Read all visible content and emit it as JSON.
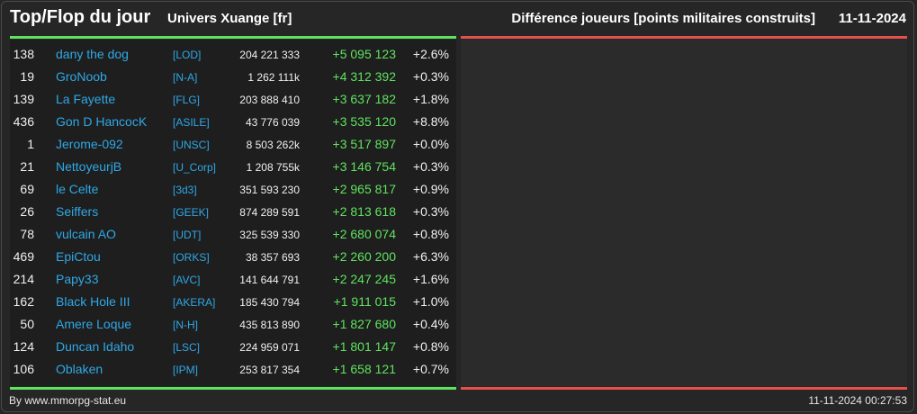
{
  "header": {
    "title": "Top/Flop du jour",
    "universe": "Univers Xuange [fr]",
    "metric": "Différence joueurs [points militaires construits]",
    "date": "11-11-2024"
  },
  "colors": {
    "green": "#5fe35f",
    "red": "#e3514a",
    "link": "#2fa8e6"
  },
  "top_players": [
    {
      "rank": "138",
      "name": "dany the dog",
      "tag": "[LOD]",
      "total": "204 221 333",
      "delta": "+5 095 123",
      "pct": "+2.6%"
    },
    {
      "rank": "19",
      "name": "GroNoob",
      "tag": "[N-A]",
      "total": "1 262 111k",
      "delta": "+4 312 392",
      "pct": "+0.3%"
    },
    {
      "rank": "139",
      "name": "La Fayette",
      "tag": "[FLG]",
      "total": "203 888 410",
      "delta": "+3 637 182",
      "pct": "+1.8%"
    },
    {
      "rank": "436",
      "name": "Gon D HancocK",
      "tag": "[ASILE]",
      "total": "43 776 039",
      "delta": "+3 535 120",
      "pct": "+8.8%"
    },
    {
      "rank": "1",
      "name": "Jerome-092",
      "tag": "[UNSC]",
      "total": "8 503 262k",
      "delta": "+3 517 897",
      "pct": "+0.0%"
    },
    {
      "rank": "21",
      "name": "NettoyeurjB",
      "tag": "[U_Corp]",
      "total": "1 208 755k",
      "delta": "+3 146 754",
      "pct": "+0.3%"
    },
    {
      "rank": "69",
      "name": "le Celte",
      "tag": "[3d3]",
      "total": "351 593 230",
      "delta": "+2 965 817",
      "pct": "+0.9%"
    },
    {
      "rank": "26",
      "name": "Seiffers",
      "tag": "[GEEK]",
      "total": "874 289 591",
      "delta": "+2 813 618",
      "pct": "+0.3%"
    },
    {
      "rank": "78",
      "name": "vulcain AO",
      "tag": "[UDT]",
      "total": "325 539 330",
      "delta": "+2 680 074",
      "pct": "+0.8%"
    },
    {
      "rank": "469",
      "name": "EpiCtou",
      "tag": "[ORKS]",
      "total": "38 357 693",
      "delta": "+2 260 200",
      "pct": "+6.3%"
    },
    {
      "rank": "214",
      "name": "Papy33",
      "tag": "[AVC]",
      "total": "141 644 791",
      "delta": "+2 247 245",
      "pct": "+1.6%"
    },
    {
      "rank": "162",
      "name": "Black Hole III",
      "tag": "[AKERA]",
      "total": "185 430 794",
      "delta": "+1 911 015",
      "pct": "+1.0%"
    },
    {
      "rank": "50",
      "name": "Amere Loque",
      "tag": "[N-H]",
      "total": "435 813 890",
      "delta": "+1 827 680",
      "pct": "+0.4%"
    },
    {
      "rank": "124",
      "name": "Duncan Idaho",
      "tag": "[LSC]",
      "total": "224 959 071",
      "delta": "+1 801 147",
      "pct": "+0.8%"
    },
    {
      "rank": "106",
      "name": "Oblaken",
      "tag": "[IPM]",
      "total": "253 817 354",
      "delta": "+1 658 121",
      "pct": "+0.7%"
    }
  ],
  "footer": {
    "credit": "By www.mmorpg-stat.eu",
    "timestamp": "11-11-2024 00:27:53"
  }
}
